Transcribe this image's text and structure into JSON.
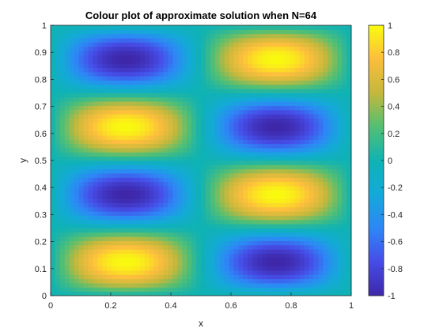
{
  "chart_data": {
    "type": "heatmap",
    "title": "Colour plot of approximate solution when N=64",
    "xlabel": "x",
    "ylabel": "y",
    "xlim": [
      0,
      1
    ],
    "ylim": [
      0,
      1
    ],
    "x_ticks": [
      "0",
      "0.2",
      "0.4",
      "0.6",
      "0.8",
      "1"
    ],
    "y_ticks": [
      "0",
      "0.1",
      "0.2",
      "0.3",
      "0.4",
      "0.5",
      "0.6",
      "0.7",
      "0.8",
      "0.9",
      "1"
    ],
    "grid_size": 64,
    "function": "sin(2*pi*x)*sin(4*pi*y)",
    "clim": [
      -1,
      1
    ],
    "colormap": "parula",
    "colorbar": {
      "location": "right",
      "ticks": [
        "1",
        "0.8",
        "0.6",
        "0.4",
        "0.2",
        "0",
        "-0.2",
        "-0.4",
        "-0.6",
        "-0.8",
        "-1"
      ]
    },
    "grid": false
  }
}
